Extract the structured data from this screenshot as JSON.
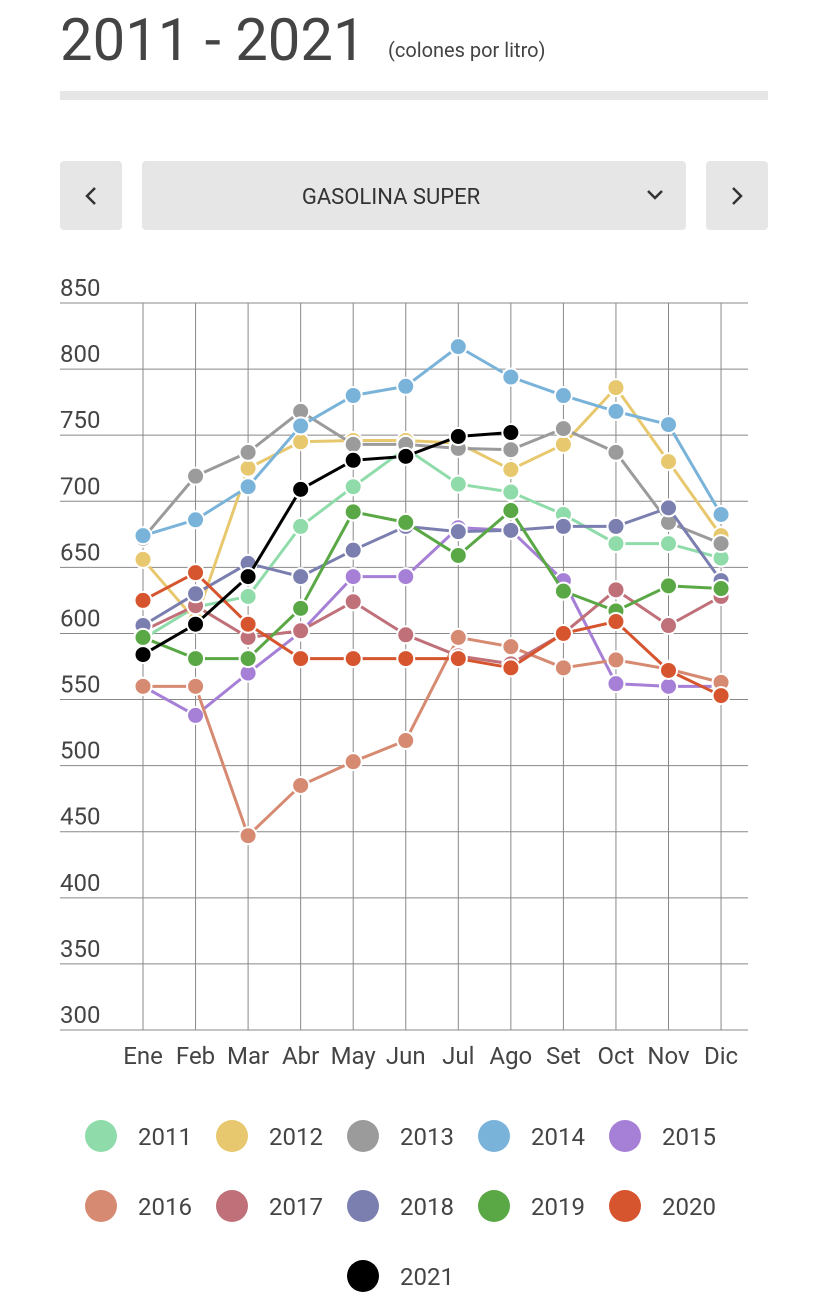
{
  "header": {
    "title": "2011 - 2021",
    "subtitle": "(colones por litro)"
  },
  "controls": {
    "prev": "<",
    "select": "GASOLINA SUPER",
    "next": ">"
  },
  "chart_data": {
    "type": "line",
    "categories": [
      "Ene",
      "Feb",
      "Mar",
      "Abr",
      "May",
      "Jun",
      "Jul",
      "Ago",
      "Set",
      "Oct",
      "Nov",
      "Dic"
    ],
    "ylim": [
      300,
      850
    ],
    "yticks": [
      300,
      350,
      400,
      450,
      500,
      550,
      600,
      650,
      700,
      750,
      800,
      850
    ],
    "grid": true,
    "legend": "bottom",
    "series": [
      {
        "name": "2011",
        "color": "#8fdcaa",
        "values": [
          596,
          620,
          628,
          681,
          711,
          740,
          713,
          707,
          690,
          668,
          668,
          657
        ]
      },
      {
        "name": "2012",
        "color": "#e8c86e",
        "values": [
          656,
          610,
          725,
          745,
          746,
          746,
          744,
          724,
          743,
          786,
          730,
          674
        ]
      },
      {
        "name": "2013",
        "color": "#9b9b9b",
        "values": [
          672,
          719,
          737,
          768,
          743,
          743,
          740,
          739,
          755,
          737,
          684,
          668
        ]
      },
      {
        "name": "2014",
        "color": "#7ab3d9",
        "values": [
          674,
          686,
          711,
          757,
          780,
          787,
          817,
          794,
          780,
          768,
          758,
          690
        ]
      },
      {
        "name": "2015",
        "color": "#a67fd6",
        "values": [
          560,
          538,
          570,
          601,
          643,
          643,
          680,
          678,
          640,
          562,
          560,
          560
        ]
      },
      {
        "name": "2016",
        "color": "#d68a72",
        "values": [
          560,
          560,
          447,
          485,
          503,
          519,
          597,
          590,
          574,
          580,
          573,
          563
        ]
      },
      {
        "name": "2017",
        "color": "#c07078",
        "values": [
          602,
          621,
          597,
          602,
          624,
          599,
          583,
          577,
          600,
          633,
          606,
          628
        ]
      },
      {
        "name": "2018",
        "color": "#7b7fb0",
        "values": [
          606,
          630,
          653,
          643,
          663,
          681,
          677,
          678,
          681,
          681,
          695,
          640
        ]
      },
      {
        "name": "2019",
        "color": "#5aa845",
        "values": [
          597,
          581,
          581,
          619,
          692,
          684,
          659,
          693,
          632,
          617,
          636,
          634
        ]
      },
      {
        "name": "2020",
        "color": "#d6552e",
        "values": [
          625,
          646,
          607,
          581,
          581,
          581,
          581,
          574,
          600,
          609,
          572,
          553
        ]
      },
      {
        "name": "2021",
        "color": "#000000",
        "values": [
          584,
          607,
          643,
          709,
          731,
          734,
          749,
          752,
          null,
          null,
          null,
          null
        ]
      }
    ]
  }
}
